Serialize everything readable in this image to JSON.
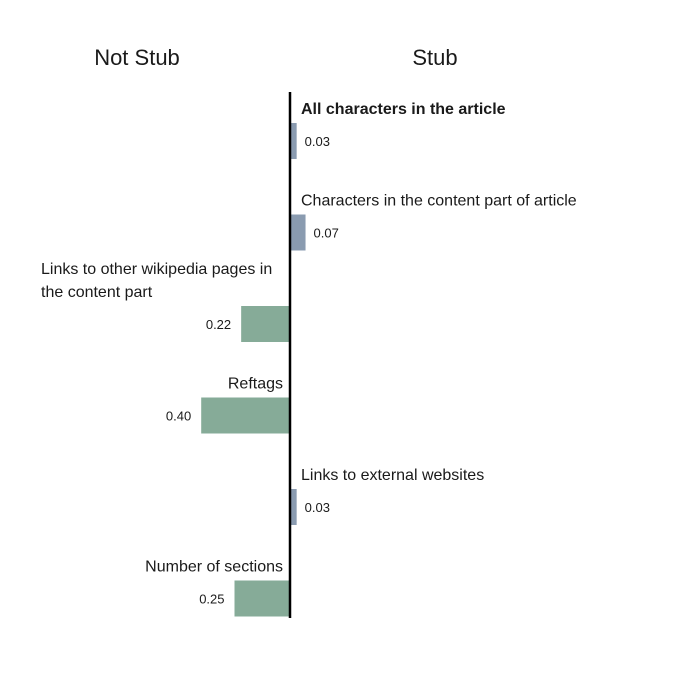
{
  "chart_data": {
    "type": "bar",
    "orientation": "horizontal-diverging",
    "left_heading": "Not Stub",
    "right_heading": "Stub",
    "colors": {
      "Stub": "#8a9bb0",
      "Not Stub": "#86ab98"
    },
    "items": [
      {
        "label": "All characters in the article",
        "label_lines": [
          "All characters in the article"
        ],
        "value": 0.03,
        "value_label": "0.03",
        "class": "Stub",
        "bold": true
      },
      {
        "label": "Characters in the content part of article",
        "label_lines": [
          "Characters in the content part of article"
        ],
        "value": 0.07,
        "value_label": "0.07",
        "class": "Stub",
        "bold": false
      },
      {
        "label": "Links to other wikipedia pages in the content part",
        "label_lines": [
          "Links to other wikipedia pages in",
          "the content part"
        ],
        "value": 0.22,
        "value_label": "0.22",
        "class": "Not Stub",
        "bold": false
      },
      {
        "label": "Reftags",
        "label_lines": [
          "Reftags"
        ],
        "value": 0.4,
        "value_label": "0.40",
        "class": "Not Stub",
        "bold": false
      },
      {
        "label": "Links to external websites",
        "label_lines": [
          "Links to external websites"
        ],
        "value": 0.03,
        "value_label": "0.03",
        "class": "Stub",
        "bold": false
      },
      {
        "label": "Number of sections",
        "label_lines": [
          "Number of sections"
        ],
        "value": 0.25,
        "value_label": "0.25",
        "class": "Not Stub",
        "bold": false
      }
    ]
  }
}
